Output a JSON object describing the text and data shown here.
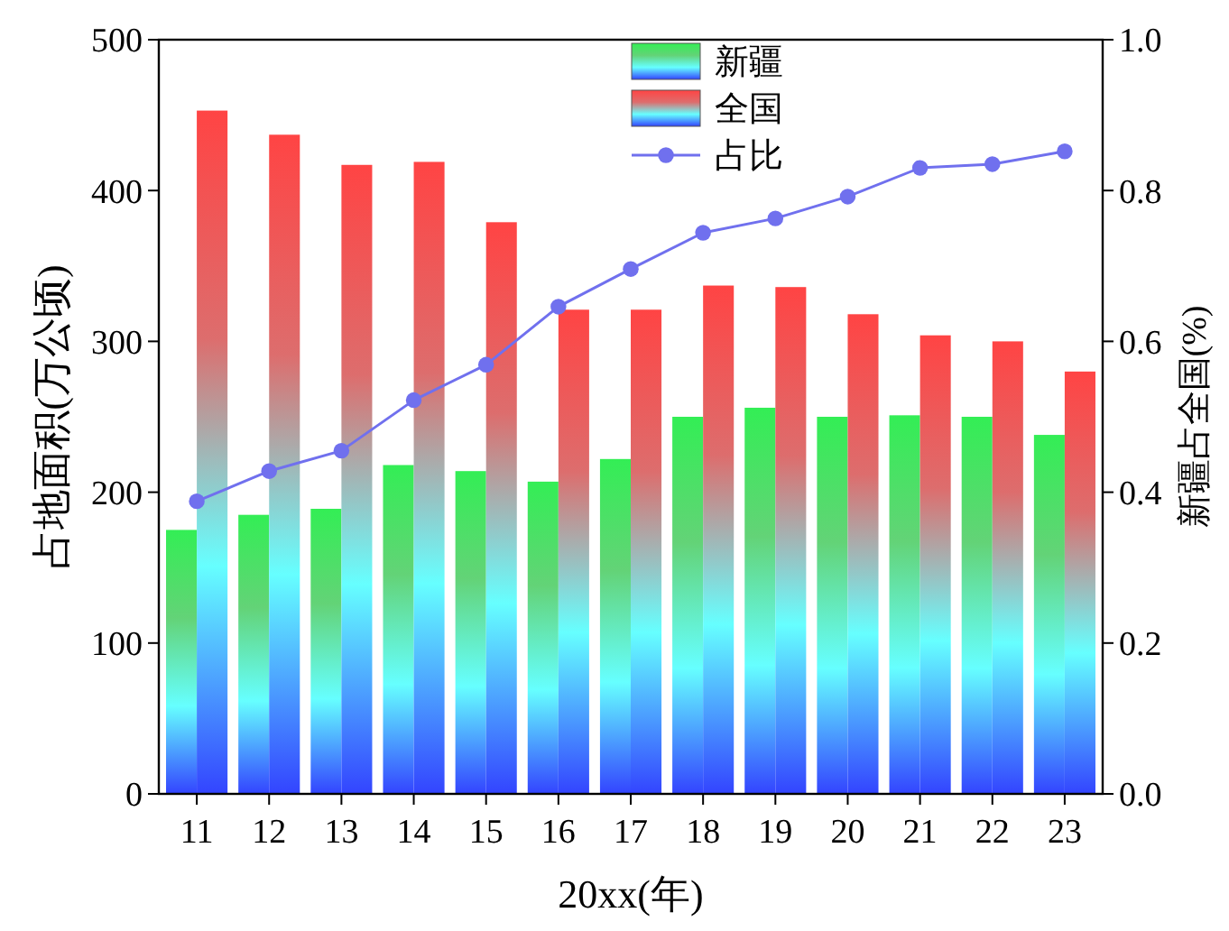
{
  "chart_data": {
    "type": "bar",
    "xlabel": "20xx(年)",
    "ylabel": "占地面积(万公顷)",
    "y2label": "新疆占全国(%)",
    "categories": [
      "11",
      "12",
      "13",
      "14",
      "15",
      "16",
      "17",
      "18",
      "19",
      "20",
      "21",
      "22",
      "23"
    ],
    "series": [
      {
        "name": "新疆",
        "color": "#33ee55",
        "values": [
          175,
          185,
          189,
          218,
          214,
          207,
          222,
          250,
          256,
          250,
          251,
          250,
          238
        ]
      },
      {
        "name": "全国",
        "color": "#ff4444",
        "values": [
          453,
          437,
          417,
          419,
          379,
          321,
          321,
          337,
          336,
          318,
          304,
          300,
          280
        ]
      },
      {
        "name": "占比",
        "type": "line",
        "axis": "y2",
        "color": "#7070ee",
        "values": [
          0.388,
          0.428,
          0.455,
          0.522,
          0.569,
          0.646,
          0.696,
          0.744,
          0.763,
          0.792,
          0.83,
          0.835,
          0.852
        ]
      }
    ],
    "ylim": [
      0,
      500
    ],
    "yticks": [
      0,
      100,
      200,
      300,
      400,
      500
    ],
    "y2lim": [
      0,
      1
    ],
    "y2ticks": [
      {
        "value": 0,
        "label": "0.0"
      },
      {
        "value": 0.2,
        "label": "0.2"
      },
      {
        "value": 0.4,
        "label": "0.4"
      },
      {
        "value": 0.6,
        "label": "0.6"
      },
      {
        "value": 0.8,
        "label": "0.8"
      },
      {
        "value": 1,
        "label": "1.0"
      }
    ],
    "legend": "top",
    "marker": "circle",
    "line_style": "solid"
  }
}
